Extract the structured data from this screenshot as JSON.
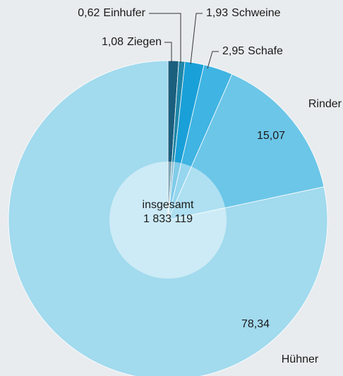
{
  "chart_data": {
    "type": "pie",
    "categories": [
      "Ziegen",
      "Einhufer",
      "Schweine",
      "Schafe",
      "Rinder",
      "Hühner"
    ],
    "values": [
      1.08,
      0.62,
      1.93,
      2.95,
      15.07,
      78.34
    ],
    "value_labels": [
      "1,08",
      "0,62",
      "1,93",
      "2,95",
      "15,07",
      "78,34"
    ],
    "colors": [
      "#1b5f7e",
      "#1f86a8",
      "#1aa0d8",
      "#40b4e2",
      "#6cc6e8",
      "#a2daee"
    ],
    "center_label": "insgesamt",
    "total_label": "1 833 119"
  }
}
